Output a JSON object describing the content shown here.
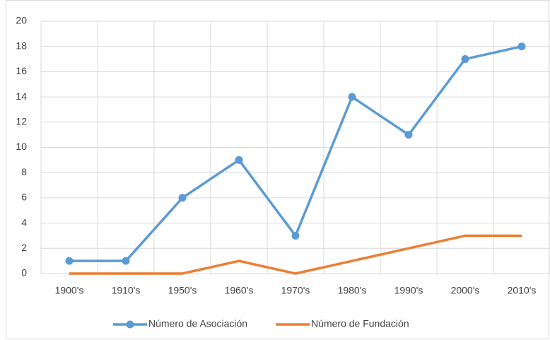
{
  "chart_data": {
    "type": "line",
    "categories": [
      "1900's",
      "1910's",
      "1950's",
      "1960's",
      "1970's",
      "1980's",
      "1990's",
      "2000's",
      "2010's"
    ],
    "series": [
      {
        "name": "Número de Asociación",
        "color": "#5b9bd5",
        "marker": true,
        "values": [
          1,
          1,
          6,
          9,
          3,
          14,
          11,
          17,
          18
        ]
      },
      {
        "name": "Número de Fundación",
        "color": "#ed7d31",
        "marker": false,
        "values": [
          0,
          0,
          0,
          1,
          0,
          1,
          2,
          3,
          3
        ]
      }
    ],
    "ylim": [
      0,
      20
    ],
    "yticks": [
      0,
      2,
      4,
      6,
      8,
      10,
      12,
      14,
      16,
      18,
      20
    ],
    "grid": true,
    "legend": "bottom"
  }
}
